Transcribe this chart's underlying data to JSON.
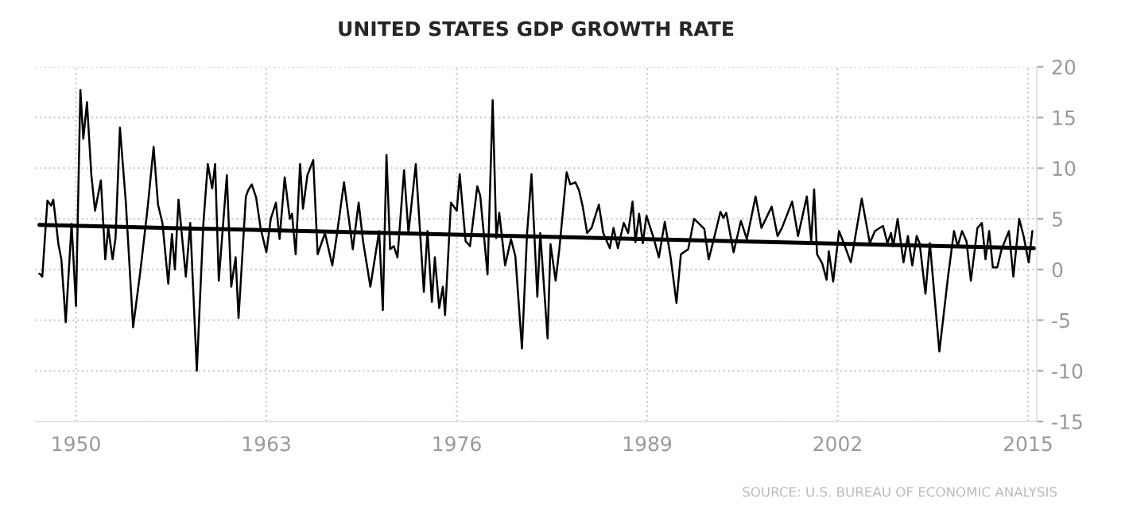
{
  "chart_data": {
    "type": "line",
    "title": "UNITED STATES GDP GROWTH RATE",
    "xlim": [
      1947.2,
      2015.6
    ],
    "xticks": [
      1950,
      1963,
      1976,
      1989,
      2002,
      2015
    ],
    "ylim": [
      -15,
      20
    ],
    "yticks": [
      -15,
      -10,
      -5,
      0,
      5,
      10,
      15,
      20
    ],
    "grid": true,
    "legend": false,
    "marker": "none",
    "line_style": "solid",
    "annotations": [
      "SOURCE: U.S. BUREAU OF ECONOMIC ANALYSIS"
    ],
    "series": [
      {
        "color": "#000000",
        "x": [
          1947.5,
          1947.7,
          1948.05,
          1948.3,
          1948.45,
          1948.8,
          1949.0,
          1949.3,
          1949.7,
          1950.0,
          1950.3,
          1950.5,
          1950.75,
          1951.05,
          1951.3,
          1951.7,
          1952.0,
          1952.2,
          1952.5,
          1952.7,
          1953.0,
          1953.4,
          1953.9,
          1954.4,
          1954.9,
          1955.3,
          1955.6,
          1955.9,
          1956.3,
          1956.55,
          1956.75,
          1957.0,
          1957.5,
          1957.8,
          1958.25,
          1958.7,
          1959.0,
          1959.3,
          1959.5,
          1959.75,
          1960.3,
          1960.6,
          1960.9,
          1961.1,
          1961.6,
          1961.75,
          1962.0,
          1962.3,
          1962.6,
          1963.0,
          1963.3,
          1963.65,
          1963.9,
          1964.25,
          1964.6,
          1964.75,
          1965.0,
          1965.3,
          1965.5,
          1965.8,
          1966.2,
          1966.5,
          1967.0,
          1967.5,
          1967.8,
          1968.3,
          1968.9,
          1969.3,
          1969.6,
          1970.1,
          1970.7,
          1970.95,
          1971.2,
          1971.45,
          1971.7,
          1971.95,
          1972.4,
          1972.7,
          1973.2,
          1973.75,
          1974.0,
          1974.3,
          1974.5,
          1974.8,
          1975.05,
          1975.2,
          1975.6,
          1976.0,
          1976.2,
          1976.6,
          1976.9,
          1977.4,
          1977.6,
          1978.1,
          1978.45,
          1978.7,
          1978.9,
          1979.3,
          1979.7,
          1980.0,
          1980.45,
          1980.8,
          1981.1,
          1981.5,
          1981.7,
          1982.2,
          1982.4,
          1982.75,
          1983.0,
          1983.5,
          1983.75,
          1984.1,
          1984.35,
          1984.6,
          1984.9,
          1985.2,
          1985.7,
          1986.0,
          1986.45,
          1986.7,
          1987.0,
          1987.4,
          1987.7,
          1988.0,
          1988.2,
          1988.45,
          1988.7,
          1988.95,
          1989.4,
          1989.8,
          1990.2,
          1990.6,
          1991.0,
          1991.3,
          1991.8,
          1992.2,
          1992.7,
          1992.9,
          1993.2,
          1993.55,
          1994.0,
          1994.2,
          1994.4,
          1994.9,
          1995.4,
          1995.8,
          1996.4,
          1996.8,
          1997.5,
          1997.9,
          1998.2,
          1998.9,
          1999.3,
          1999.9,
          2000.2,
          2000.4,
          2000.6,
          2000.95,
          2001.25,
          2001.4,
          2001.7,
          2002.1,
          2002.5,
          2002.9,
          2003.1,
          2003.65,
          2004.2,
          2004.55,
          2005.1,
          2005.4,
          2005.65,
          2005.8,
          2006.1,
          2006.5,
          2006.8,
          2007.1,
          2007.4,
          2007.6,
          2008.0,
          2008.3,
          2008.95,
          2009.55,
          2009.95,
          2010.2,
          2010.5,
          2010.8,
          2011.1,
          2011.55,
          2011.85,
          2012.1,
          2012.35,
          2012.6,
          2012.9,
          2013.2,
          2013.7,
          2014.0,
          2014.4,
          2014.7,
          2015.05,
          2015.3
        ],
        "values": [
          -0.4,
          -0.7,
          6.8,
          6.3,
          6.9,
          2.5,
          1.0,
          -5.2,
          4.5,
          -3.6,
          17.7,
          12.9,
          16.5,
          9.3,
          5.8,
          8.8,
          1.0,
          4.1,
          1.0,
          3.1,
          14.0,
          6.7,
          -5.7,
          -0.1,
          6.2,
          12.1,
          6.4,
          4.6,
          -1.4,
          3.5,
          0.0,
          6.9,
          -0.7,
          4.6,
          -10.0,
          4.6,
          10.4,
          8.0,
          10.4,
          -1.1,
          9.3,
          -1.7,
          1.2,
          -4.8,
          7.2,
          7.8,
          8.4,
          7.1,
          4.1,
          1.7,
          5.0,
          6.6,
          3.0,
          9.1,
          5.0,
          5.5,
          1.5,
          10.4,
          6.0,
          9.3,
          10.8,
          1.5,
          3.6,
          0.4,
          3.3,
          8.6,
          2.0,
          6.6,
          2.8,
          -1.7,
          3.8,
          -4.0,
          11.3,
          2.0,
          2.3,
          1.2,
          9.8,
          3.6,
          10.4,
          -2.2,
          3.8,
          -3.2,
          1.2,
          -3.8,
          -1.7,
          -4.5,
          6.6,
          5.8,
          9.4,
          2.8,
          2.3,
          8.2,
          7.3,
          -0.5,
          16.7,
          3.1,
          5.6,
          0.4,
          3.0,
          1.3,
          -7.8,
          3.6,
          9.4,
          -2.7,
          3.6,
          -6.8,
          2.5,
          -1.1,
          2.0,
          9.6,
          8.4,
          8.6,
          7.8,
          6.2,
          3.6,
          4.1,
          6.4,
          3.6,
          2.1,
          4.1,
          2.1,
          4.6,
          3.6,
          6.7,
          2.7,
          5.5,
          2.6,
          5.3,
          3.3,
          1.2,
          4.7,
          1.2,
          -3.3,
          1.5,
          2.0,
          5.0,
          4.3,
          4.0,
          1.0,
          3.0,
          5.7,
          5.1,
          5.6,
          1.7,
          4.8,
          3.0,
          7.2,
          4.1,
          6.2,
          3.3,
          4.1,
          6.7,
          3.3,
          7.2,
          2.8,
          7.9,
          1.5,
          0.6,
          -1.0,
          1.8,
          -1.2,
          3.8,
          2.3,
          0.7,
          2.3,
          7.0,
          2.6,
          3.8,
          4.3,
          2.6,
          3.6,
          2.3,
          5.0,
          0.7,
          3.3,
          0.4,
          3.3,
          2.6,
          -2.4,
          2.6,
          -8.1,
          -0.6,
          3.8,
          2.3,
          3.8,
          2.8,
          -1.1,
          4.1,
          4.6,
          1.0,
          3.8,
          0.2,
          0.2,
          2.0,
          3.8,
          -0.7,
          5.0,
          3.3,
          0.7,
          3.8
        ]
      },
      {
        "type": "line",
        "color": "#000000",
        "x": [
          1947.5,
          2015.4
        ],
        "values": [
          4.4,
          2.1
        ]
      }
    ]
  }
}
